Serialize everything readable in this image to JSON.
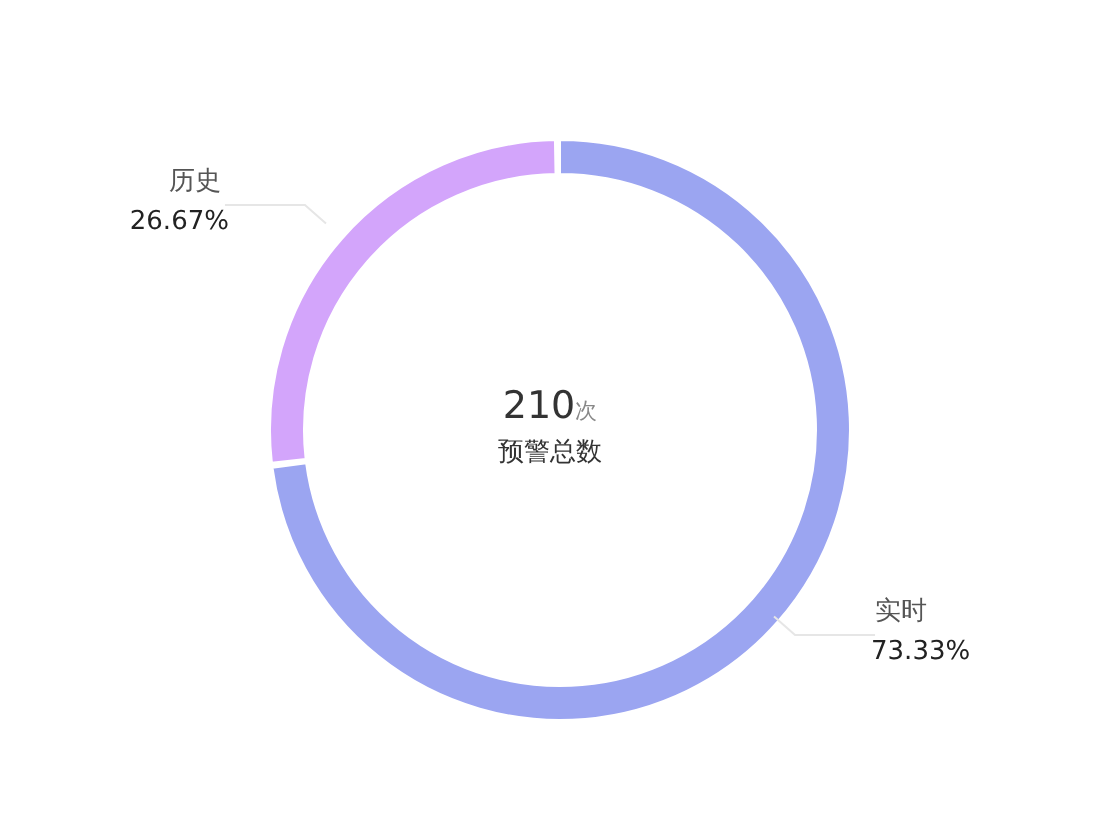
{
  "chart_data": {
    "type": "donut",
    "categories": [
      "实时",
      "历史"
    ],
    "values": [
      73.33,
      26.67
    ],
    "colors": [
      "#9ba5f1",
      "#d3a5fb"
    ],
    "value_labels": [
      "73.33%",
      "26.67%"
    ],
    "annotations": [
      "210次",
      "预警总数"
    ],
    "legend": false
  }
}
